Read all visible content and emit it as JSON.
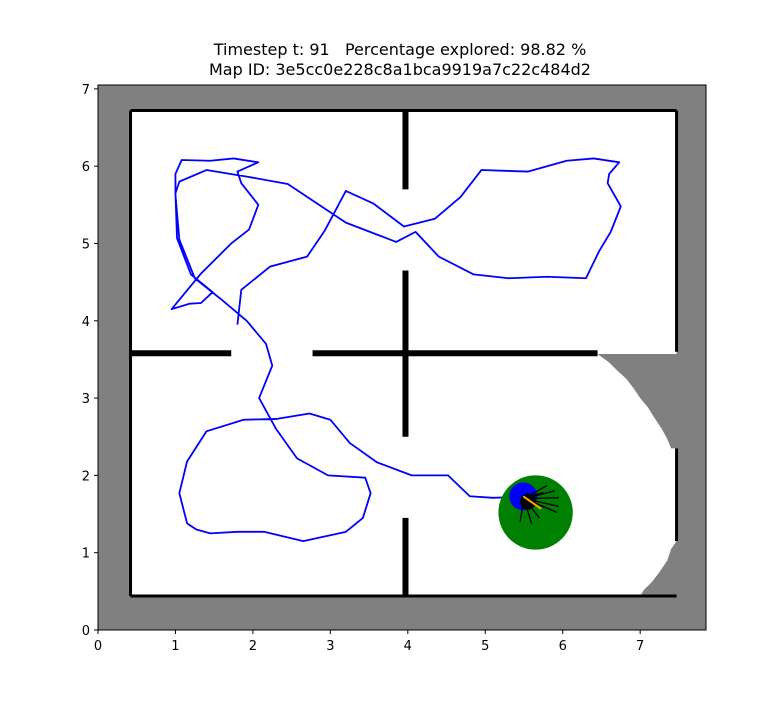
{
  "title": {
    "line1": "Timestep t: 91   Percentage explored: 98.82 %",
    "line2": "Map ID: 3e5cc0e228c8a1bca9919a7c22c484d2"
  },
  "colors": {
    "unexplored": "#808080",
    "explored": "#ffffff",
    "wall": "#000000",
    "trajectory": "#0000ff",
    "agent_goal": "#008000",
    "agent": "#0000ff",
    "heading": "#ffa500",
    "rays": "#000000"
  },
  "chart_data": {
    "type": "scatter",
    "xlim": [
      0,
      7.85
    ],
    "ylim": [
      0,
      7.05
    ],
    "x_ticks": [
      "0",
      "1",
      "2",
      "3",
      "4",
      "5",
      "6",
      "7"
    ],
    "y_ticks": [
      "0",
      "1",
      "2",
      "3",
      "4",
      "5",
      "6",
      "7"
    ],
    "walls": [
      [
        [
          0.42,
          6.72
        ],
        [
          7.47,
          6.72
        ]
      ],
      [
        [
          0.42,
          0.44
        ],
        [
          7.47,
          0.44
        ]
      ],
      [
        [
          0.42,
          0.44
        ],
        [
          0.42,
          6.72
        ]
      ],
      [
        [
          7.47,
          3.6
        ],
        [
          7.47,
          6.72
        ]
      ],
      [
        [
          7.47,
          1.15
        ],
        [
          7.47,
          2.35
        ]
      ],
      [
        [
          0.42,
          3.58
        ],
        [
          1.72,
          3.58
        ]
      ],
      [
        [
          2.77,
          3.58
        ],
        [
          6.45,
          3.58
        ]
      ],
      [
        [
          3.97,
          5.7
        ],
        [
          3.97,
          6.72
        ]
      ],
      [
        [
          3.97,
          2.5
        ],
        [
          3.97,
          4.65
        ]
      ],
      [
        [
          3.97,
          0.44
        ],
        [
          3.97,
          1.45
        ]
      ]
    ],
    "trajectory": [
      [
        1.8,
        3.95
      ],
      [
        1.85,
        4.4
      ],
      [
        2.22,
        4.7
      ],
      [
        2.7,
        4.83
      ],
      [
        2.93,
        5.17
      ],
      [
        3.2,
        5.68
      ],
      [
        3.55,
        5.52
      ],
      [
        3.95,
        5.22
      ],
      [
        4.35,
        5.32
      ],
      [
        4.68,
        5.6
      ],
      [
        4.95,
        5.95
      ],
      [
        5.55,
        5.93
      ],
      [
        6.05,
        6.07
      ],
      [
        6.4,
        6.1
      ],
      [
        6.73,
        6.05
      ],
      [
        6.6,
        5.9
      ],
      [
        6.58,
        5.78
      ],
      [
        6.75,
        5.48
      ],
      [
        6.62,
        5.15
      ],
      [
        6.47,
        4.9
      ],
      [
        6.3,
        4.55
      ],
      [
        5.8,
        4.57
      ],
      [
        5.3,
        4.55
      ],
      [
        4.85,
        4.6
      ],
      [
        4.4,
        4.83
      ],
      [
        4.1,
        5.15
      ],
      [
        3.85,
        5.02
      ],
      [
        3.2,
        5.27
      ],
      [
        2.45,
        5.77
      ],
      [
        1.95,
        5.86
      ],
      [
        1.4,
        5.95
      ],
      [
        1.05,
        5.8
      ],
      [
        1.0,
        5.65
      ],
      [
        1.02,
        5.07
      ],
      [
        1.2,
        4.6
      ],
      [
        1.48,
        4.37
      ],
      [
        1.33,
        4.23
      ],
      [
        1.18,
        4.22
      ],
      [
        0.95,
        4.15
      ],
      [
        1.32,
        4.6
      ],
      [
        1.72,
        5.0
      ],
      [
        1.95,
        5.18
      ],
      [
        2.07,
        5.5
      ],
      [
        1.85,
        5.78
      ],
      [
        1.8,
        5.93
      ],
      [
        2.07,
        6.05
      ],
      [
        1.75,
        6.1
      ],
      [
        1.45,
        6.07
      ],
      [
        1.08,
        6.08
      ],
      [
        1.0,
        5.9
      ],
      [
        1.0,
        5.63
      ],
      [
        1.05,
        5.05
      ],
      [
        1.25,
        4.55
      ],
      [
        1.6,
        4.27
      ],
      [
        1.92,
        4.0
      ],
      [
        2.17,
        3.7
      ],
      [
        2.25,
        3.42
      ],
      [
        2.08,
        3.0
      ],
      [
        2.3,
        2.6
      ],
      [
        2.57,
        2.22
      ],
      [
        2.97,
        2.0
      ],
      [
        3.45,
        1.97
      ],
      [
        3.52,
        1.77
      ],
      [
        3.42,
        1.45
      ],
      [
        3.2,
        1.27
      ],
      [
        2.65,
        1.15
      ],
      [
        2.15,
        1.27
      ],
      [
        1.8,
        1.27
      ],
      [
        1.45,
        1.25
      ],
      [
        1.27,
        1.3
      ],
      [
        1.15,
        1.38
      ],
      [
        1.05,
        1.77
      ],
      [
        1.15,
        2.18
      ],
      [
        1.4,
        2.57
      ],
      [
        1.88,
        2.72
      ],
      [
        2.3,
        2.73
      ],
      [
        2.73,
        2.8
      ],
      [
        3.0,
        2.72
      ],
      [
        3.25,
        2.42
      ],
      [
        3.6,
        2.17
      ],
      [
        4.05,
        2.0
      ],
      [
        4.52,
        2.0
      ],
      [
        4.8,
        1.73
      ],
      [
        5.1,
        1.71
      ],
      [
        5.38,
        1.72
      ],
      [
        5.47,
        1.7
      ]
    ],
    "agent": {
      "x": 5.65,
      "y": 1.52,
      "goal_radius": 0.48,
      "agent_radius": 0.18,
      "heading_deg": -35
    },
    "sensor_rays": [
      [
        [
          5.5,
          1.7
        ],
        [
          5.95,
          1.71
        ]
      ],
      [
        [
          5.5,
          1.7
        ],
        [
          5.9,
          1.8
        ]
      ],
      [
        [
          5.5,
          1.7
        ],
        [
          5.8,
          1.87
        ]
      ],
      [
        [
          5.5,
          1.7
        ],
        [
          5.66,
          1.75
        ]
      ],
      [
        [
          5.5,
          1.7
        ],
        [
          5.93,
          1.52
        ]
      ],
      [
        [
          5.5,
          1.7
        ],
        [
          5.7,
          1.45
        ]
      ],
      [
        [
          5.5,
          1.7
        ],
        [
          5.6,
          1.37
        ]
      ],
      [
        [
          5.5,
          1.7
        ],
        [
          5.45,
          1.4
        ]
      ],
      [
        [
          5.5,
          1.7
        ],
        [
          5.68,
          1.6
        ]
      ],
      [
        [
          5.5,
          1.7
        ],
        [
          5.95,
          1.6
        ]
      ],
      [
        [
          5.5,
          1.7
        ],
        [
          5.75,
          1.78
        ]
      ]
    ],
    "unexplored_fringe": [
      [
        6.45,
        3.57
      ],
      [
        6.6,
        3.46
      ],
      [
        6.7,
        3.36
      ],
      [
        6.82,
        3.25
      ],
      [
        6.92,
        3.12
      ],
      [
        7.0,
        3.0
      ],
      [
        7.1,
        2.88
      ],
      [
        7.18,
        2.75
      ],
      [
        7.28,
        2.6
      ],
      [
        7.35,
        2.47
      ],
      [
        7.4,
        2.35
      ],
      [
        7.47,
        2.35
      ],
      [
        7.47,
        1.15
      ],
      [
        7.4,
        1.05
      ],
      [
        7.35,
        0.9
      ],
      [
        7.25,
        0.75
      ],
      [
        7.15,
        0.62
      ],
      [
        7.05,
        0.52
      ],
      [
        7.0,
        0.44
      ]
    ]
  }
}
